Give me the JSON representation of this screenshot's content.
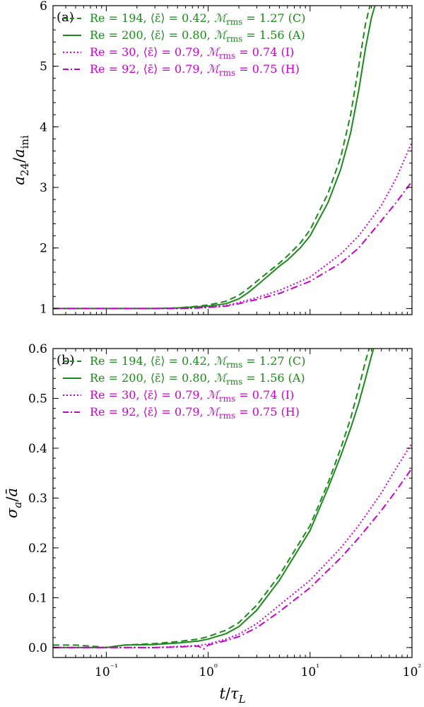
{
  "colors": {
    "green": "#1a8a1a",
    "magenta": "#cc00cc",
    "axis": "#000000"
  },
  "chart_data": [
    {
      "type": "line",
      "panel_label": "(a)",
      "xscale": "log",
      "xlim": [
        0.03,
        100
      ],
      "ylim": [
        0.9,
        6
      ],
      "xticks": [
        0.1,
        1,
        10,
        100
      ],
      "xtick_labels": [
        "",
        "",
        "",
        ""
      ],
      "yticks": [
        1,
        2,
        3,
        4,
        5,
        6
      ],
      "ytick_labels": [
        "1",
        "2",
        "3",
        "4",
        "5",
        "6"
      ],
      "xlabel": "",
      "ylabel": "a24/aini",
      "grid": false,
      "legend_position": "top-left",
      "series": [
        {
          "name": "Re = 194, ⟨ε̄⟩ = 0.42, ℳrms = 1.27 (C)",
          "color": "green",
          "style": "dashed",
          "x": [
            0.03,
            0.1,
            0.3,
            0.5,
            0.8,
            1,
            1.5,
            2,
            2.5,
            3,
            4,
            5,
            6,
            8,
            10,
            15,
            20,
            25,
            30,
            35,
            40
          ],
          "y": [
            1.0,
            1.0,
            1.0,
            1.01,
            1.04,
            1.06,
            1.12,
            1.22,
            1.34,
            1.45,
            1.62,
            1.75,
            1.87,
            2.08,
            2.3,
            2.9,
            3.5,
            4.2,
            5.0,
            5.7,
            6.1
          ]
        },
        {
          "name": "Re = 200, ⟨ε̄⟩ = 0.80, ℳrms = 1.56 (A)",
          "color": "green",
          "style": "solid",
          "x": [
            0.03,
            0.1,
            0.3,
            0.5,
            0.8,
            1,
            1.5,
            2,
            2.5,
            3,
            4,
            5,
            6,
            8,
            10,
            15,
            20,
            25,
            30,
            35,
            40,
            45
          ],
          "y": [
            1.0,
            1.0,
            1.0,
            1.01,
            1.03,
            1.04,
            1.08,
            1.16,
            1.27,
            1.38,
            1.56,
            1.7,
            1.8,
            2.0,
            2.2,
            2.75,
            3.3,
            3.9,
            4.6,
            5.3,
            5.8,
            6.1
          ]
        },
        {
          "name": "Re = 30, ⟨ε̄⟩ = 0.79, ℳrms = 0.74 (I)",
          "color": "magenta",
          "style": "dotted",
          "x": [
            0.03,
            0.1,
            0.3,
            0.5,
            0.8,
            1,
            1.5,
            2,
            3,
            5,
            10,
            20,
            30,
            50,
            70,
            100
          ],
          "y": [
            1.0,
            1.0,
            1.0,
            1.0,
            1.01,
            1.02,
            1.05,
            1.1,
            1.18,
            1.3,
            1.52,
            1.9,
            2.2,
            2.7,
            3.15,
            3.75
          ]
        },
        {
          "name": "Re = 92, ⟨ε̄⟩ = 0.79, ℳrms = 0.75 (H)",
          "color": "magenta",
          "style": "dashdot",
          "x": [
            0.03,
            0.1,
            0.3,
            0.5,
            0.8,
            1,
            1.5,
            2,
            3,
            5,
            10,
            20,
            30,
            50,
            70,
            100
          ],
          "y": [
            1.0,
            1.0,
            1.0,
            1.0,
            1.01,
            1.02,
            1.04,
            1.08,
            1.15,
            1.25,
            1.45,
            1.75,
            2.0,
            2.45,
            2.75,
            3.1
          ]
        }
      ]
    },
    {
      "type": "line",
      "panel_label": "(b)",
      "xscale": "log",
      "xlim": [
        0.03,
        100
      ],
      "ylim": [
        -0.02,
        0.6
      ],
      "xticks": [
        0.1,
        1,
        10,
        100
      ],
      "xtick_labels": [
        "10⁻¹",
        "10⁰",
        "10¹",
        "10²"
      ],
      "yticks": [
        0.0,
        0.1,
        0.2,
        0.3,
        0.4,
        0.5,
        0.6
      ],
      "ytick_labels": [
        "0.0",
        "0.1",
        "0.2",
        "0.3",
        "0.4",
        "0.5",
        "0.6"
      ],
      "xlabel": "t/τL",
      "ylabel": "σa/ā",
      "grid": false,
      "legend_position": "top-left",
      "series": [
        {
          "name": "Re = 194, ⟨ε̄⟩ = 0.42, ℳrms = 1.27 (C)",
          "color": "green",
          "style": "dashed",
          "x": [
            0.03,
            0.05,
            0.08,
            0.1,
            0.15,
            0.3,
            0.5,
            0.8,
            1,
            1.5,
            2,
            3,
            5,
            10,
            15,
            20,
            25,
            30,
            35,
            38
          ],
          "y": [
            0.005,
            0.005,
            0.002,
            0.0,
            0.005,
            0.008,
            0.012,
            0.017,
            0.022,
            0.035,
            0.05,
            0.085,
            0.145,
            0.245,
            0.33,
            0.4,
            0.46,
            0.52,
            0.575,
            0.6
          ]
        },
        {
          "name": "Re = 200, ⟨ε̄⟩ = 0.80, ℳrms = 1.56 (A)",
          "color": "green",
          "style": "solid",
          "x": [
            0.03,
            0.05,
            0.08,
            0.1,
            0.15,
            0.3,
            0.5,
            0.8,
            1,
            1.5,
            2,
            3,
            5,
            10,
            15,
            20,
            25,
            30,
            35,
            40,
            42
          ],
          "y": [
            0.0,
            0.0,
            0.0,
            0.0,
            0.005,
            0.006,
            0.009,
            0.013,
            0.017,
            0.028,
            0.042,
            0.075,
            0.135,
            0.235,
            0.32,
            0.385,
            0.44,
            0.49,
            0.54,
            0.585,
            0.6
          ]
        },
        {
          "name": "Re = 30, ⟨ε̄⟩ = 0.79, ℳrms = 0.74 (I)",
          "color": "magenta",
          "style": "dotted",
          "x": [
            0.03,
            0.1,
            0.3,
            0.5,
            0.8,
            1,
            1.5,
            2,
            3,
            5,
            10,
            20,
            30,
            50,
            70,
            100
          ],
          "y": [
            0.0,
            0.0,
            0.0,
            0.002,
            0.004,
            0.007,
            0.017,
            0.027,
            0.048,
            0.085,
            0.135,
            0.2,
            0.245,
            0.31,
            0.36,
            0.41
          ]
        },
        {
          "name": "Re = 92, ⟨ε̄⟩ = 0.79, ℳrms = 0.75 (H)",
          "color": "magenta",
          "style": "dashdot",
          "x": [
            0.03,
            0.1,
            0.3,
            0.5,
            0.8,
            0.9,
            1,
            1.5,
            2,
            3,
            5,
            10,
            20,
            30,
            50,
            70,
            100
          ],
          "y": [
            0.0,
            0.0,
            0.0,
            0.001,
            0.003,
            -0.003,
            0.005,
            0.014,
            0.022,
            0.04,
            0.072,
            0.12,
            0.18,
            0.22,
            0.275,
            0.315,
            0.36
          ]
        }
      ]
    }
  ]
}
